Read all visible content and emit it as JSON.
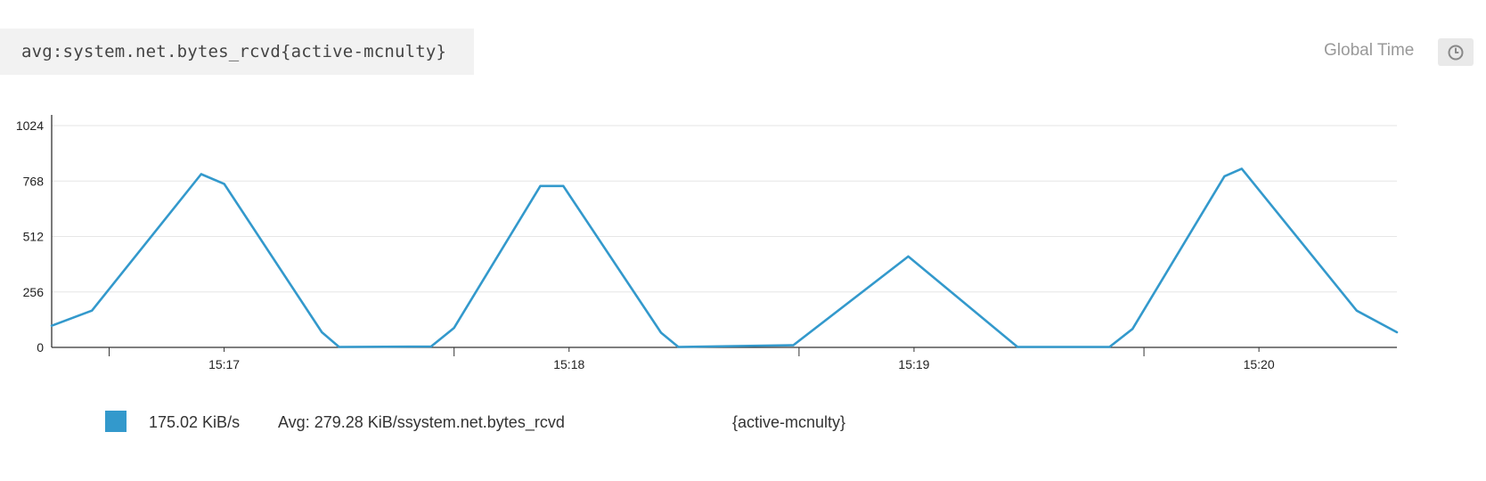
{
  "query": {
    "text": "avg:system.net.bytes_rcvd{active-mcnulty}"
  },
  "header": {
    "global_time_label": "Global Time",
    "clock_icon": "clock-icon"
  },
  "colors": {
    "series": "#3399cc",
    "grid": "#e6e6e6",
    "axis": "#333333",
    "tick_text": "#222222"
  },
  "chart_data": {
    "type": "line",
    "title": "",
    "xlabel": "",
    "ylabel": "",
    "ylim": [
      0,
      1024
    ],
    "xlim": [
      "15:16:30",
      "15:20:24"
    ],
    "y_ticks": [
      0,
      256,
      512,
      768,
      1024
    ],
    "y_tick_labels": [
      "0",
      "256",
      "512",
      "768",
      "1024"
    ],
    "x_tick_labels": [
      {
        "time": "15:17:00",
        "label": "15:17"
      },
      {
        "time": "15:18:00",
        "label": "15:18"
      },
      {
        "time": "15:19:00",
        "label": "15:19"
      },
      {
        "time": "15:20:00",
        "label": "15:20"
      }
    ],
    "x_minor_ticks": [
      "15:16:40",
      "15:17:40",
      "15:18:40",
      "15:19:40"
    ],
    "grid": true,
    "series": [
      {
        "name": "system.net.bytes_rcvd",
        "x": [
          "15:16:30",
          "15:16:37",
          "15:16:56",
          "15:17:00",
          "15:17:17",
          "15:17:20",
          "15:17:36",
          "15:17:40",
          "15:17:55",
          "15:17:59",
          "15:18:16",
          "15:18:19",
          "15:18:39",
          "15:18:59",
          "15:19:18",
          "15:19:34",
          "15:19:38",
          "15:19:54",
          "15:19:57",
          "15:20:17",
          "15:20:24"
        ],
        "y": [
          100,
          170,
          800,
          755,
          70,
          2,
          4,
          90,
          745,
          745,
          68,
          2,
          10,
          420,
          2,
          2,
          85,
          790,
          825,
          170,
          70
        ]
      }
    ]
  },
  "legend": {
    "current_value": "175.02 KiB/s",
    "avg_text": "Avg: 279.28 KiB/ssystem.net.bytes_rcvd",
    "tag": "{active-mcnulty}"
  }
}
